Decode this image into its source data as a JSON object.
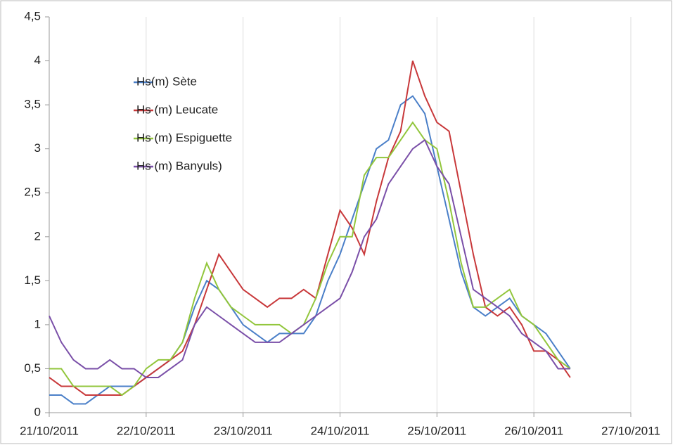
{
  "chart_data": {
    "type": "line",
    "x": [
      0,
      0.125,
      0.25,
      0.375,
      0.5,
      0.625,
      0.75,
      0.875,
      1,
      1.125,
      1.25,
      1.375,
      1.5,
      1.625,
      1.75,
      1.875,
      2,
      2.125,
      2.25,
      2.375,
      2.5,
      2.625,
      2.75,
      2.875,
      3,
      3.125,
      3.25,
      3.375,
      3.5,
      3.625,
      3.75,
      3.875,
      4,
      4.125,
      4.25,
      4.375,
      4.5,
      4.625,
      4.75,
      4.875,
      5,
      5.125,
      5.25,
      5.375
    ],
    "series": [
      {
        "name": "Hs(m) Sète",
        "color": "#4a7fc8",
        "values": [
          0.2,
          0.2,
          0.1,
          0.1,
          0.2,
          0.3,
          0.3,
          0.3,
          0.4,
          0.5,
          0.6,
          0.8,
          1.2,
          1.5,
          1.4,
          1.2,
          1.0,
          0.9,
          0.8,
          0.9,
          0.9,
          0.9,
          1.1,
          1.5,
          1.8,
          2.2,
          2.6,
          3.0,
          3.1,
          3.5,
          3.6,
          3.4,
          2.8,
          2.2,
          1.6,
          1.2,
          1.1,
          1.2,
          1.3,
          1.1,
          1.0,
          0.9,
          0.7,
          0.5
        ]
      },
      {
        "name": "Hs (m) Leucate",
        "color": "#c8383a",
        "values": [
          0.4,
          0.3,
          0.3,
          0.2,
          0.2,
          0.2,
          0.2,
          0.3,
          0.4,
          0.5,
          0.6,
          0.7,
          1.0,
          1.4,
          1.8,
          1.6,
          1.4,
          1.3,
          1.2,
          1.3,
          1.3,
          1.4,
          1.3,
          1.8,
          2.3,
          2.1,
          1.8,
          2.4,
          2.9,
          3.2,
          4.0,
          3.6,
          3.3,
          3.2,
          2.5,
          1.8,
          1.2,
          1.1,
          1.2,
          1.0,
          0.7,
          0.7,
          0.6,
          0.4
        ]
      },
      {
        "name": "Hs (m) Espiguette",
        "color": "#92c63c",
        "values": [
          0.5,
          0.5,
          0.3,
          0.3,
          0.3,
          0.3,
          0.2,
          0.3,
          0.5,
          0.6,
          0.6,
          0.8,
          1.3,
          1.7,
          1.4,
          1.2,
          1.1,
          1.0,
          1.0,
          1.0,
          0.9,
          1.0,
          1.3,
          1.7,
          2.0,
          2.0,
          2.7,
          2.9,
          2.9,
          3.1,
          3.3,
          3.1,
          3.0,
          2.4,
          1.7,
          1.2,
          1.2,
          1.3,
          1.4,
          1.1,
          1.0,
          0.8,
          0.6,
          0.5
        ]
      },
      {
        "name": "Hs (m) Banyuls)",
        "color": "#7a4fa8",
        "values": [
          1.1,
          0.8,
          0.6,
          0.5,
          0.5,
          0.6,
          0.5,
          0.5,
          0.4,
          0.4,
          0.5,
          0.6,
          1.0,
          1.2,
          1.1,
          1.0,
          0.9,
          0.8,
          0.8,
          0.8,
          0.9,
          1.0,
          1.1,
          1.2,
          1.3,
          1.6,
          2.0,
          2.2,
          2.6,
          2.8,
          3.0,
          3.1,
          2.8,
          2.6,
          2.0,
          1.4,
          1.3,
          1.2,
          1.1,
          0.9,
          0.8,
          0.7,
          0.5,
          0.5
        ]
      }
    ],
    "xlim": [
      0,
      6
    ],
    "xticks": [
      {
        "value": 0,
        "label": "21/10/2011"
      },
      {
        "value": 1,
        "label": "22/10/2011"
      },
      {
        "value": 2,
        "label": "23/10/2011"
      },
      {
        "value": 3,
        "label": "24/10/2011"
      },
      {
        "value": 4,
        "label": "25/10/2011"
      },
      {
        "value": 5,
        "label": "26/10/2011"
      },
      {
        "value": 6,
        "label": "27/10/2011"
      }
    ],
    "ylim": [
      0,
      4.5
    ],
    "yticks": [
      0,
      {
        "value": 0.5,
        "label": "0,5"
      },
      1,
      {
        "value": 1.5,
        "label": "1,5"
      },
      2,
      {
        "value": 2.5,
        "label": "2,5"
      },
      3,
      {
        "value": 3.5,
        "label": "3,5"
      },
      4,
      {
        "value": 4.5,
        "label": "4,5"
      }
    ],
    "grid": true,
    "legend": "upper left"
  }
}
